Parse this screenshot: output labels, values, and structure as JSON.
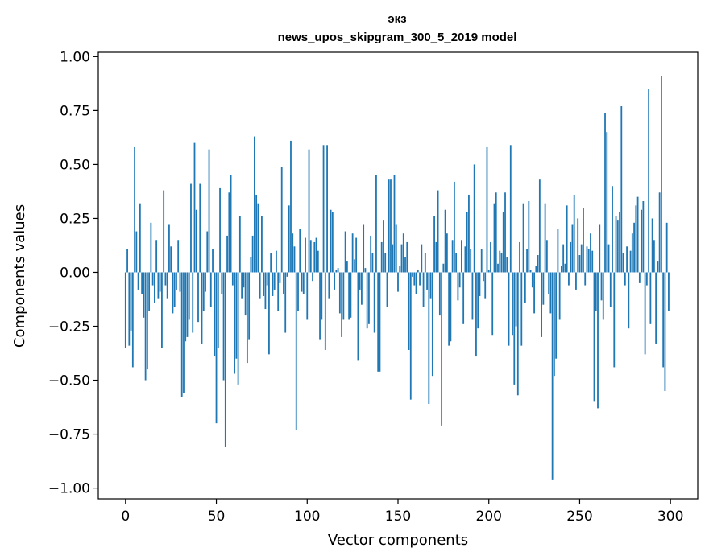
{
  "chart_data": {
    "type": "bar",
    "title": "экз",
    "subtitle": "news_upos_skipgram_300_5_2019 model",
    "xlabel": "Vector components",
    "ylabel": "Components values",
    "xlim": [
      -15,
      315
    ],
    "ylim": [
      -1.05,
      1.02
    ],
    "xticks": [
      0,
      50,
      100,
      150,
      200,
      250,
      300
    ],
    "xtick_labels": [
      "0",
      "50",
      "100",
      "150",
      "200",
      "250",
      "300"
    ],
    "yticks": [
      1.0,
      0.75,
      0.5,
      0.25,
      0.0,
      -0.25,
      -0.5,
      -0.75,
      -1.0
    ],
    "ytick_labels": [
      "1.00",
      "0.75",
      "0.50",
      "0.25",
      "0.00",
      "−0.25",
      "−0.50",
      "−0.75",
      "−1.00"
    ],
    "bar_color": "#1f77b4",
    "grid": false,
    "x": "0..299 (component index)",
    "values": [
      -0.35,
      0.11,
      -0.34,
      -0.27,
      -0.44,
      0.58,
      0.19,
      -0.08,
      0.32,
      -0.1,
      -0.21,
      -0.5,
      -0.45,
      -0.18,
      0.23,
      -0.06,
      -0.14,
      0.15,
      -0.12,
      -0.09,
      -0.35,
      0.38,
      -0.06,
      -0.12,
      0.22,
      0.12,
      -0.19,
      -0.16,
      -0.08,
      0.15,
      -0.09,
      -0.58,
      -0.56,
      -0.32,
      -0.3,
      -0.22,
      0.41,
      -0.28,
      0.6,
      0.29,
      -0.23,
      0.41,
      -0.33,
      -0.18,
      -0.09,
      0.19,
      0.57,
      -0.16,
      0.11,
      -0.39,
      -0.7,
      -0.35,
      0.39,
      -0.1,
      -0.5,
      -0.81,
      0.17,
      0.37,
      0.45,
      -0.06,
      -0.47,
      -0.4,
      -0.52,
      0.26,
      -0.12,
      -0.07,
      -0.2,
      -0.42,
      -0.31,
      0.07,
      0.17,
      0.63,
      0.36,
      0.32,
      -0.12,
      0.26,
      -0.11,
      -0.17,
      -0.06,
      -0.38,
      0.09,
      -0.11,
      -0.08,
      0.1,
      -0.18,
      -0.05,
      0.49,
      -0.1,
      -0.28,
      -0.02,
      0.31,
      0.61,
      0.18,
      0.12,
      -0.73,
      -0.18,
      0.2,
      -0.09,
      -0.1,
      0.16,
      -0.22,
      0.57,
      0.15,
      -0.04,
      0.14,
      0.16,
      0.1,
      -0.31,
      -0.22,
      0.59,
      -0.36,
      0.59,
      -0.12,
      0.29,
      0.28,
      -0.08,
      0.01,
      0.02,
      -0.19,
      -0.3,
      -0.22,
      0.19,
      0.05,
      -0.22,
      -0.21,
      0.18,
      0.06,
      0.16,
      -0.41,
      -0.08,
      -0.15,
      0.22,
      0.02,
      -0.26,
      -0.24,
      0.17,
      0.09,
      -0.28,
      0.45,
      -0.46,
      -0.46,
      0.14,
      0.24,
      0.09,
      -0.16,
      0.43,
      0.43,
      0.13,
      0.45,
      0.22,
      -0.09,
      0.03,
      0.13,
      0.18,
      0.07,
      0.14,
      -0.36,
      -0.59,
      -0.02,
      -0.06,
      -0.1,
      0.01,
      -0.06,
      0.13,
      -0.16,
      0.09,
      -0.08,
      -0.61,
      -0.12,
      -0.48,
      0.26,
      0.14,
      0.38,
      -0.2,
      -0.71,
      0.04,
      0.29,
      0.18,
      -0.34,
      -0.32,
      0.15,
      0.42,
      0.09,
      -0.13,
      -0.07,
      0.15,
      -0.24,
      0.12,
      0.28,
      0.36,
      0.11,
      -0.22,
      0.5,
      -0.39,
      -0.26,
      -0.11,
      0.11,
      -0.04,
      -0.12,
      0.58,
      0.01,
      0.14,
      -0.29,
      0.32,
      0.37,
      0.04,
      0.1,
      0.09,
      0.28,
      0.37,
      0.07,
      -0.34,
      0.59,
      -0.29,
      -0.52,
      -0.25,
      -0.57,
      0.14,
      -0.34,
      0.32,
      -0.14,
      0.11,
      0.33,
      0.01,
      -0.07,
      -0.19,
      0.03,
      0.08,
      0.43,
      -0.3,
      -0.15,
      0.32,
      0.15,
      -0.1,
      -0.19,
      -0.96,
      -0.48,
      -0.4,
      0.2,
      -0.22,
      0.03,
      0.13,
      0.04,
      0.31,
      -0.06,
      0.14,
      0.22,
      0.36,
      -0.08,
      0.25,
      0.08,
      0.13,
      0.3,
      -0.06,
      0.12,
      0.11,
      0.18,
      0.1,
      -0.6,
      -0.18,
      -0.63,
      0.22,
      -0.13,
      -0.22,
      0.74,
      0.65,
      0.13,
      -0.16,
      0.4,
      -0.44,
      0.26,
      0.24,
      0.28,
      0.77,
      0.09,
      -0.06,
      0.12,
      -0.26,
      0.1,
      0.18,
      0.23,
      0.31,
      0.35,
      -0.05,
      0.29,
      0.33,
      -0.38,
      -0.06,
      0.85,
      -0.24,
      0.25,
      0.15,
      -0.33,
      0.05,
      0.37,
      0.91,
      -0.44,
      -0.55,
      0.23,
      -0.18
    ]
  }
}
